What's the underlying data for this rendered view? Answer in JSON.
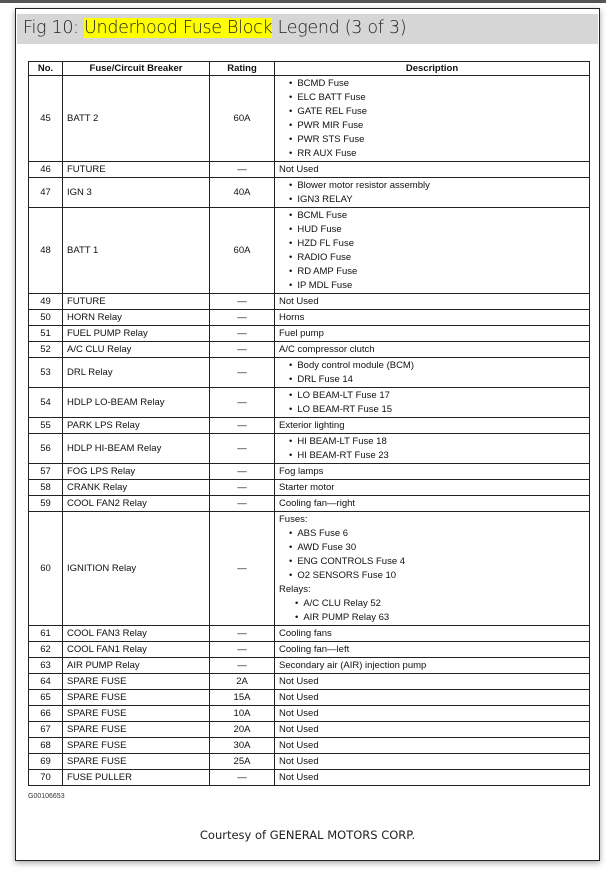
{
  "title": {
    "prefix": "Fig 10: ",
    "highlight": "Underhood Fuse Block",
    "suffix": " Legend (3 of 3)"
  },
  "table": {
    "headers": [
      "No.",
      "Fuse/Circuit Breaker",
      "Rating",
      "Description"
    ],
    "rows": [
      {
        "no": "45",
        "fuse": "BATT 2",
        "rating": "60A",
        "desc": [
          {
            "b": "BCMD Fuse"
          },
          {
            "b": "ELC BATT Fuse"
          },
          {
            "b": "GATE REL Fuse"
          },
          {
            "b": "PWR MIR Fuse"
          },
          {
            "b": "PWR STS Fuse"
          },
          {
            "b": "RR AUX Fuse"
          }
        ]
      },
      {
        "no": "46",
        "fuse": "FUTURE",
        "rating": "—",
        "desc": [
          {
            "t": "Not Used"
          }
        ]
      },
      {
        "no": "47",
        "fuse": "IGN 3",
        "rating": "40A",
        "desc": [
          {
            "b": "Blower motor resistor assembly"
          },
          {
            "b": "IGN3 RELAY"
          }
        ]
      },
      {
        "no": "48",
        "fuse": "BATT 1",
        "rating": "60A",
        "desc": [
          {
            "b": "BCML Fuse"
          },
          {
            "b": "HUD Fuse"
          },
          {
            "b": "HZD FL Fuse"
          },
          {
            "b": "RADIO Fuse"
          },
          {
            "b": "RD AMP Fuse"
          },
          {
            "b": "IP MDL Fuse"
          }
        ]
      },
      {
        "no": "49",
        "fuse": "FUTURE",
        "rating": "—",
        "desc": [
          {
            "t": "Not Used"
          }
        ]
      },
      {
        "no": "50",
        "fuse": "HORN Relay",
        "rating": "—",
        "desc": [
          {
            "t": "Horns"
          }
        ]
      },
      {
        "no": "51",
        "fuse": "FUEL PUMP Relay",
        "rating": "—",
        "desc": [
          {
            "t": "Fuel pump"
          }
        ]
      },
      {
        "no": "52",
        "fuse": "A/C CLU Relay",
        "rating": "—",
        "desc": [
          {
            "t": "A/C compressor clutch"
          }
        ]
      },
      {
        "no": "53",
        "fuse": "DRL Relay",
        "rating": "—",
        "desc": [
          {
            "b": "Body control module (BCM)"
          },
          {
            "b": "DRL Fuse 14"
          }
        ]
      },
      {
        "no": "54",
        "fuse": "HDLP LO-BEAM Relay",
        "rating": "—",
        "desc": [
          {
            "b": "LO BEAM-LT Fuse 17"
          },
          {
            "b": "LO BEAM-RT Fuse 15"
          }
        ]
      },
      {
        "no": "55",
        "fuse": "PARK LPS Relay",
        "rating": "—",
        "desc": [
          {
            "t": "Exterior lighting"
          }
        ]
      },
      {
        "no": "56",
        "fuse": "HDLP HI-BEAM Relay",
        "rating": "—",
        "desc": [
          {
            "b": "HI BEAM-LT Fuse 18"
          },
          {
            "b": "HI BEAM-RT Fuse 23"
          }
        ]
      },
      {
        "no": "57",
        "fuse": "FOG LPS Relay",
        "rating": "—",
        "desc": [
          {
            "t": "Fog lamps"
          }
        ]
      },
      {
        "no": "58",
        "fuse": "CRANK Relay",
        "rating": "—",
        "desc": [
          {
            "t": "Starter motor"
          }
        ]
      },
      {
        "no": "59",
        "fuse": "COOL FAN2 Relay",
        "rating": "—",
        "desc": [
          {
            "t": "Cooling fan—right"
          }
        ]
      },
      {
        "no": "60",
        "fuse": "IGNITION Relay",
        "rating": "—",
        "desc": [
          {
            "t": "Fuses:"
          },
          {
            "b": "ABS Fuse 6"
          },
          {
            "b": "AWD Fuse 30"
          },
          {
            "b": "ENG CONTROLS Fuse 4"
          },
          {
            "b": "O2 SENSORS Fuse 10"
          },
          {
            "t": "Relays:"
          },
          {
            "s": "A/C CLU Relay 52"
          },
          {
            "s": "AIR PUMP Relay 63"
          }
        ]
      },
      {
        "no": "61",
        "fuse": "COOL FAN3 Relay",
        "rating": "—",
        "desc": [
          {
            "t": "Cooling fans"
          }
        ]
      },
      {
        "no": "62",
        "fuse": "COOL FAN1 Relay",
        "rating": "—",
        "desc": [
          {
            "t": "Cooling fan—left"
          }
        ]
      },
      {
        "no": "63",
        "fuse": "AIR PUMP Relay",
        "rating": "—",
        "desc": [
          {
            "t": "Secondary air (AIR) injection pump"
          }
        ]
      },
      {
        "no": "64",
        "fuse": "SPARE FUSE",
        "rating": "2A",
        "desc": [
          {
            "t": "Not Used"
          }
        ]
      },
      {
        "no": "65",
        "fuse": "SPARE FUSE",
        "rating": "15A",
        "desc": [
          {
            "t": "Not Used"
          }
        ]
      },
      {
        "no": "66",
        "fuse": "SPARE FUSE",
        "rating": "10A",
        "desc": [
          {
            "t": "Not Used"
          }
        ]
      },
      {
        "no": "67",
        "fuse": "SPARE FUSE",
        "rating": "20A",
        "desc": [
          {
            "t": "Not Used"
          }
        ]
      },
      {
        "no": "68",
        "fuse": "SPARE FUSE",
        "rating": "30A",
        "desc": [
          {
            "t": "Not Used"
          }
        ]
      },
      {
        "no": "69",
        "fuse": "SPARE FUSE",
        "rating": "25A",
        "desc": [
          {
            "t": "Not Used"
          }
        ]
      },
      {
        "no": "70",
        "fuse": "FUSE PULLER",
        "rating": "—",
        "desc": [
          {
            "t": "Not Used"
          }
        ]
      }
    ]
  },
  "figure_code": "G00106653",
  "courtesy": "Courtesy of GENERAL MOTORS CORP.",
  "colors": {
    "highlight": "#ffff00",
    "title_bar": "#d6d6d6"
  }
}
